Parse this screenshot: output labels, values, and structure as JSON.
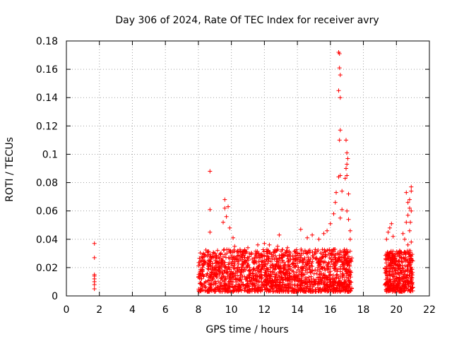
{
  "chart_data": {
    "type": "scatter",
    "title": "Day 306 of 2024, Rate Of TEC Index for receiver avry",
    "xlabel": "GPS time / hours",
    "ylabel": "ROTI / TECUs",
    "xlim": [
      0,
      22
    ],
    "ylim": [
      0,
      0.18
    ],
    "xticks": [
      "0",
      "2",
      "4",
      "6",
      "8",
      "10",
      "12",
      "14",
      "16",
      "18",
      "20",
      "22"
    ],
    "yticks": [
      "0",
      "0.02",
      "0.04",
      "0.06",
      "0.08",
      "0.1",
      "0.12",
      "0.14",
      "0.16",
      "0.18"
    ],
    "grid": true,
    "marker": "+",
    "color": "#ff0000",
    "series": [
      {
        "name": "ROTI",
        "points": [
          [
            1.7,
            0.037
          ],
          [
            1.7,
            0.027
          ],
          [
            1.7,
            0.015
          ],
          [
            1.7,
            0.014
          ],
          [
            1.7,
            0.012
          ],
          [
            1.7,
            0.01
          ],
          [
            1.7,
            0.008
          ],
          [
            1.7,
            0.005
          ],
          [
            8.7,
            0.088
          ],
          [
            8.7,
            0.061
          ],
          [
            8.7,
            0.045
          ],
          [
            9.6,
            0.068
          ],
          [
            9.6,
            0.062
          ],
          [
            9.7,
            0.056
          ],
          [
            9.8,
            0.063
          ],
          [
            9.5,
            0.052
          ],
          [
            9.9,
            0.048
          ],
          [
            10.1,
            0.041
          ],
          [
            10.2,
            0.035
          ],
          [
            11.0,
            0.034
          ],
          [
            11.6,
            0.036
          ],
          [
            12.0,
            0.037
          ],
          [
            12.3,
            0.036
          ],
          [
            12.8,
            0.035
          ],
          [
            12.9,
            0.043
          ],
          [
            13.4,
            0.034
          ],
          [
            14.2,
            0.047
          ],
          [
            14.6,
            0.041
          ],
          [
            14.9,
            0.043
          ],
          [
            15.3,
            0.04
          ],
          [
            15.6,
            0.044
          ],
          [
            15.8,
            0.046
          ],
          [
            16.0,
            0.051
          ],
          [
            16.2,
            0.058
          ],
          [
            16.3,
            0.066
          ],
          [
            16.35,
            0.073
          ],
          [
            16.5,
            0.172
          ],
          [
            16.55,
            0.171
          ],
          [
            16.55,
            0.161
          ],
          [
            16.6,
            0.156
          ],
          [
            16.5,
            0.145
          ],
          [
            16.6,
            0.14
          ],
          [
            16.6,
            0.117
          ],
          [
            16.55,
            0.11
          ],
          [
            16.6,
            0.085
          ],
          [
            16.5,
            0.084
          ],
          [
            16.7,
            0.074
          ],
          [
            16.7,
            0.061
          ],
          [
            16.6,
            0.055
          ],
          [
            16.95,
            0.11
          ],
          [
            17.0,
            0.101
          ],
          [
            17.05,
            0.097
          ],
          [
            17.0,
            0.093
          ],
          [
            16.95,
            0.09
          ],
          [
            17.0,
            0.085
          ],
          [
            16.9,
            0.083
          ],
          [
            17.1,
            0.072
          ],
          [
            17.0,
            0.06
          ],
          [
            17.1,
            0.054
          ],
          [
            17.2,
            0.046
          ],
          [
            17.2,
            0.04
          ],
          [
            19.7,
            0.051
          ],
          [
            19.6,
            0.048
          ],
          [
            19.5,
            0.045
          ],
          [
            19.4,
            0.04
          ],
          [
            19.8,
            0.042
          ],
          [
            20.4,
            0.044
          ],
          [
            20.5,
            0.04
          ],
          [
            20.6,
            0.052
          ],
          [
            20.7,
            0.057
          ],
          [
            20.8,
            0.062
          ],
          [
            20.6,
            0.073
          ],
          [
            20.9,
            0.077
          ],
          [
            20.9,
            0.074
          ],
          [
            20.8,
            0.068
          ],
          [
            20.7,
            0.066
          ],
          [
            20.9,
            0.06
          ],
          [
            20.85,
            0.052
          ],
          [
            20.8,
            0.046
          ],
          [
            20.9,
            0.038
          ],
          [
            20.7,
            0.036
          ]
        ],
        "dense_clusters": [
          {
            "x_range": [
              8.0,
              17.3
            ],
            "y_range": [
              0.003,
              0.033
            ],
            "count": 1700
          },
          {
            "x_range": [
              19.3,
              21.0
            ],
            "y_range": [
              0.003,
              0.032
            ],
            "count": 420
          }
        ]
      }
    ]
  }
}
